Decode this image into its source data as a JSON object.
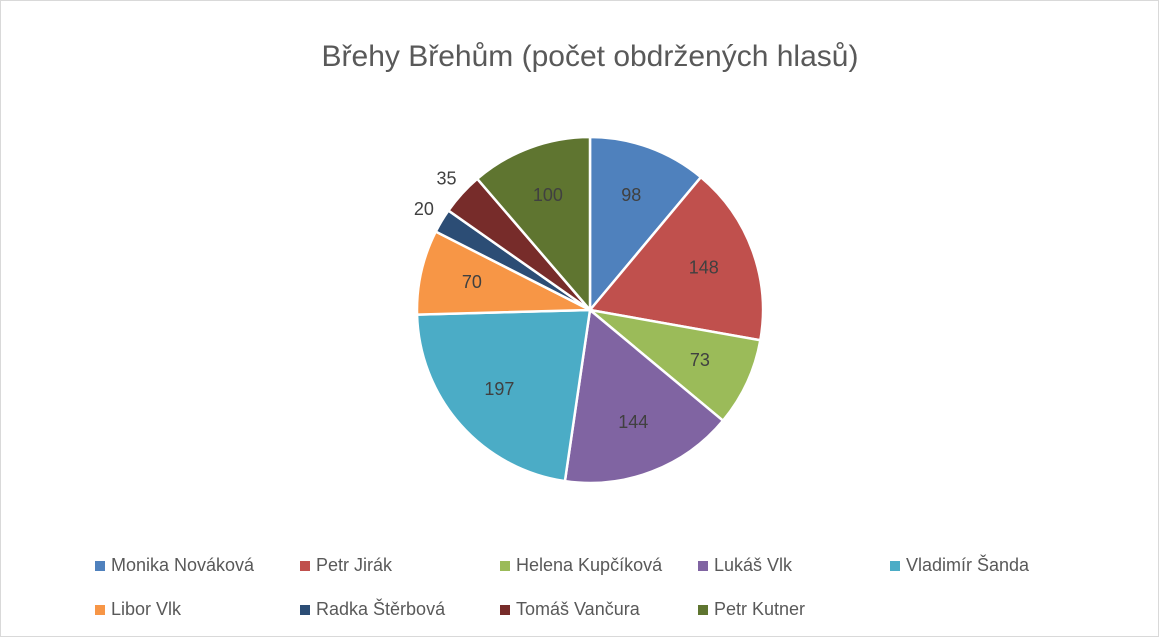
{
  "chart_data": {
    "type": "pie",
    "title": "Břehy Břehům (počet obdržených hlasů)",
    "categories": [
      "Monika Nováková",
      "Petr Jirák",
      "Helena Kupčíková",
      "Lukáš Vlk",
      "Vladimír Šanda",
      "Libor Vlk",
      "Radka Štěrbová",
      "Tomáš Vančura",
      "Petr Kutner"
    ],
    "values": [
      98,
      148,
      73,
      144,
      197,
      70,
      20,
      35,
      100
    ],
    "colors": [
      "#4f81bd",
      "#c0504d",
      "#9bbb59",
      "#8064a2",
      "#4bacc6",
      "#f79646",
      "#2c4d75",
      "#772c2a",
      "#5f7530"
    ],
    "legend": "bottom"
  }
}
